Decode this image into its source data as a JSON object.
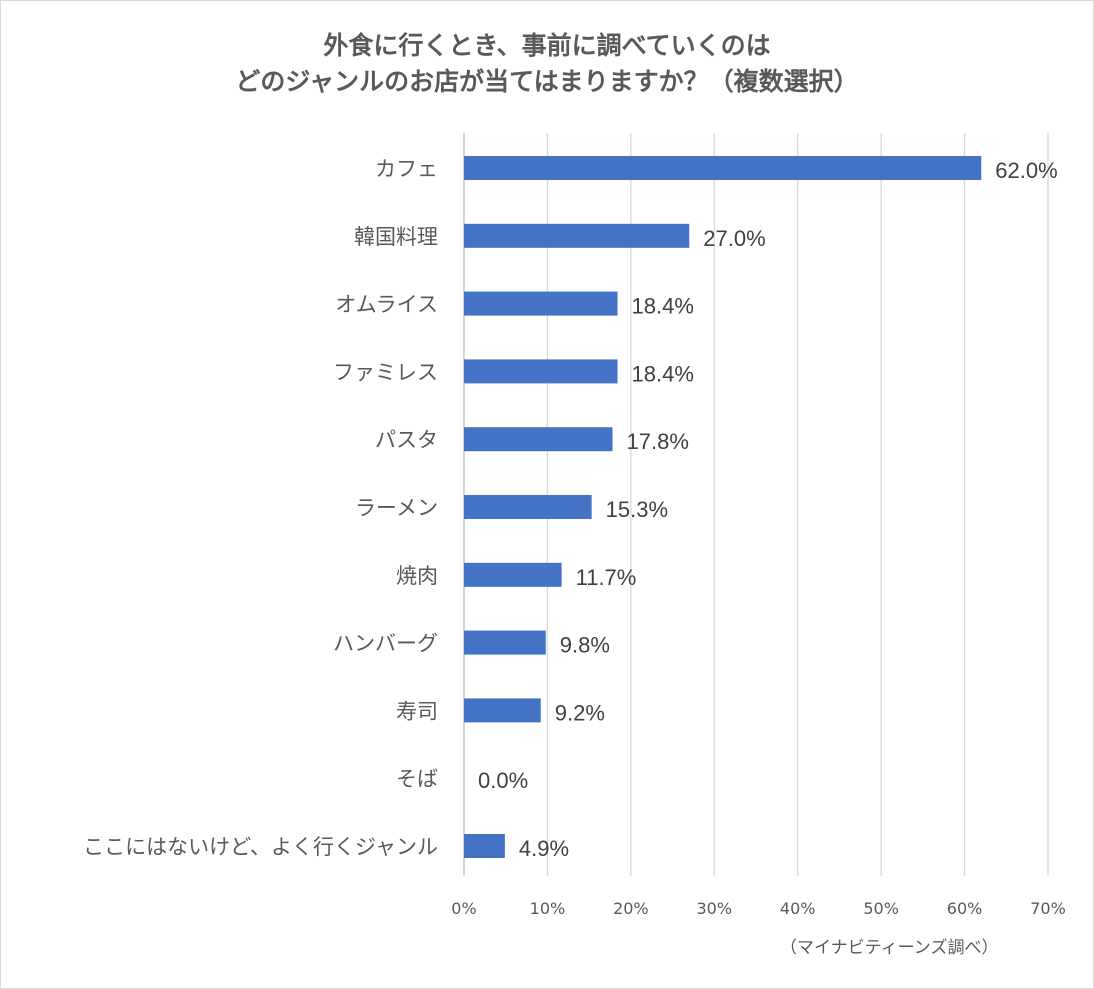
{
  "chart_data": {
    "type": "bar",
    "orientation": "horizontal",
    "title": [
      "外食に行くとき、事前に調べていくのは",
      "どのジャンルのお店が当てはまりますか？（複数選択）"
    ],
    "xlabel": "",
    "ylabel": "",
    "categories": [
      "カフェ",
      "韓国料理",
      "オムライス",
      "ファミレス",
      "パスタ",
      "ラーメン",
      "焼肉",
      "ハンバーグ",
      "寿司",
      "そば",
      "ここにはないけど、よく行くジャンル"
    ],
    "values": [
      62.0,
      27.0,
      18.4,
      18.4,
      17.8,
      15.3,
      11.7,
      9.8,
      9.2,
      0.0,
      4.9
    ],
    "value_labels": [
      "62.0%",
      "27.0%",
      "18.4%",
      "18.4%",
      "17.8%",
      "15.3%",
      "11.7%",
      "9.8%",
      "9.2%",
      "0.0%",
      "4.9%"
    ],
    "xlim": [
      0,
      70
    ],
    "xticks": [
      0,
      10,
      20,
      30,
      40,
      50,
      60,
      70
    ],
    "xtick_labels": [
      "0%",
      "10%",
      "20%",
      "30%",
      "40%",
      "50%",
      "60%",
      "70%"
    ],
    "grid": "vertical",
    "legend": "none",
    "bar_color": "#4472c4",
    "source_note": "（マイナビティーンズ調べ）"
  }
}
